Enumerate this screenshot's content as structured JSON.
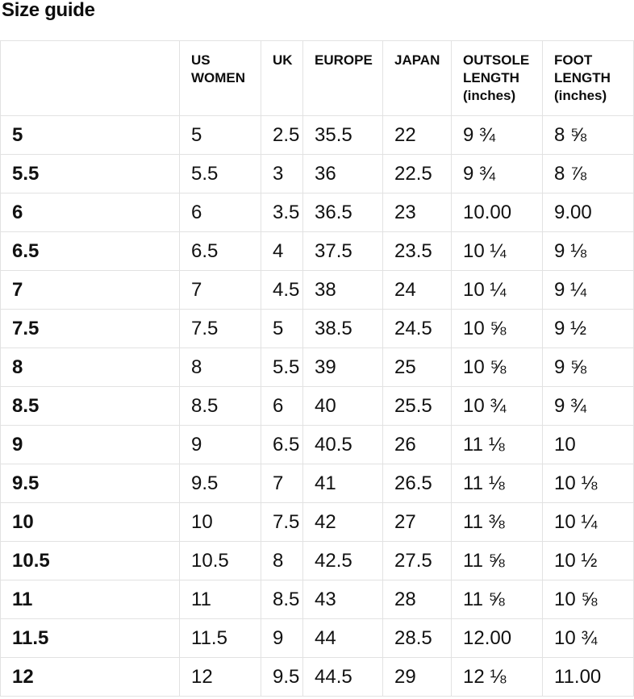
{
  "page": {
    "title": "Size guide"
  },
  "table": {
    "columns": [
      "",
      "US WOMEN",
      "UK",
      "EUROPE",
      "JAPAN",
      "OUTSOLE LENGTH (inches)",
      "FOOT LENGTH (inches)"
    ],
    "rows": [
      [
        "5",
        "5",
        "2.5",
        "35.5",
        "22",
        "9 ¾",
        "8 ⅝"
      ],
      [
        "5.5",
        "5.5",
        "3",
        "36",
        "22.5",
        "9 ¾",
        "8 ⅞"
      ],
      [
        "6",
        "6",
        "3.5",
        "36.5",
        "23",
        "10.00",
        "9.00"
      ],
      [
        "6.5",
        "6.5",
        "4",
        "37.5",
        "23.5",
        "10 ¼",
        "9 ⅛"
      ],
      [
        "7",
        "7",
        "4.5",
        "38",
        "24",
        "10 ¼",
        "9 ¼"
      ],
      [
        "7.5",
        "7.5",
        "5",
        "38.5",
        "24.5",
        "10 ⅝",
        "9 ½"
      ],
      [
        "8",
        "8",
        "5.5",
        "39",
        "25",
        "10 ⅝",
        "9 ⅝"
      ],
      [
        "8.5",
        "8.5",
        "6",
        "40",
        "25.5",
        "10 ¾",
        "9 ¾"
      ],
      [
        "9",
        "9",
        "6.5",
        "40.5",
        "26",
        "11 ⅛",
        "10"
      ],
      [
        "9.5",
        "9.5",
        "7",
        "41",
        "26.5",
        "11 ⅛",
        "10 ⅛"
      ],
      [
        "10",
        "10",
        "7.5",
        "42",
        "27",
        "11 ⅜",
        "10 ¼"
      ],
      [
        "10.5",
        "10.5",
        "8",
        "42.5",
        "27.5",
        "11 ⅝",
        "10 ½"
      ],
      [
        "11",
        "11",
        "8.5",
        "43",
        "28",
        "11 ⅝",
        "10 ⅝"
      ],
      [
        "11.5",
        "11.5",
        "9",
        "44",
        "28.5",
        "12.00",
        "10 ¾"
      ],
      [
        "12",
        "12",
        "9.5",
        "44.5",
        "29",
        "12 ⅛",
        "11.00"
      ]
    ]
  }
}
